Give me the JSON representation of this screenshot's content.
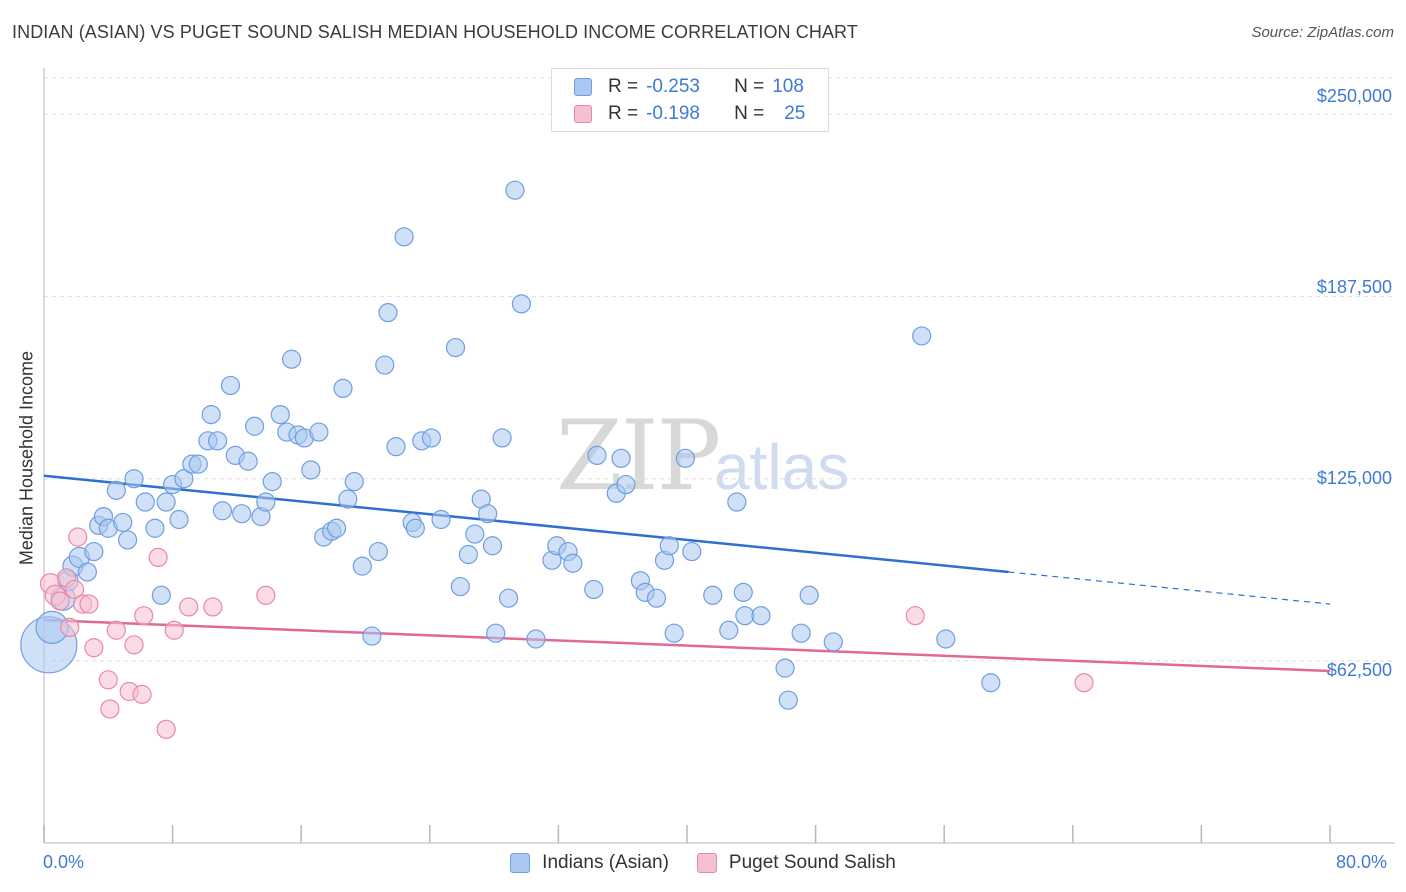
{
  "header": {
    "title": "INDIAN (ASIAN) VS PUGET SOUND SALISH MEDIAN HOUSEHOLD INCOME CORRELATION CHART",
    "source": "Source: ZipAtlas.com"
  },
  "watermark": {
    "zip": "ZIP",
    "atlas": "atlas"
  },
  "legend": {
    "rows": [
      {
        "r_label": "R =",
        "r_value": "-0.253",
        "n_label": "N =",
        "n_value": "108",
        "color": "#aac8f0",
        "border": "#6f9fe0"
      },
      {
        "r_label": "R =",
        "r_value": "-0.198",
        "n_label": "N =",
        "n_value": "25",
        "color": "#f7c0d2",
        "border": "#e889a8"
      }
    ]
  },
  "bottom_legend": {
    "items": [
      {
        "label": "Indians (Asian)",
        "color": "#aac8f0",
        "border": "#6f9fe0"
      },
      {
        "label": "Puget Sound Salish",
        "color": "#f7c0d2",
        "border": "#e889a8"
      }
    ]
  },
  "chart_data": {
    "type": "scatter",
    "title": "INDIAN (ASIAN) VS PUGET SOUND SALISH MEDIAN HOUSEHOLD INCOME CORRELATION CHART",
    "xlabel": "",
    "ylabel": "Median Household Income",
    "xlim": [
      0,
      80
    ],
    "ylim": [
      0,
      262500
    ],
    "x_tick_labels": [
      "0.0%",
      "80.0%"
    ],
    "y_ticks": [
      62500,
      125000,
      187500,
      250000
    ],
    "y_tick_labels": [
      "$62,500",
      "$125,000",
      "$187,500",
      "$250,000"
    ],
    "grid": "horizontal dashed",
    "legend_position": "top-center",
    "series": [
      {
        "name": "Indians (Asian)",
        "color": "#aac8f0",
        "stroke": "#6f9fe0",
        "trend": {
          "x_start": 0,
          "y_start": 126000,
          "x_solid_end": 60,
          "y_solid_end": 93000,
          "x_end": 80,
          "y_end": 82000
        },
        "points": [
          [
            0.3,
            68000,
            28
          ],
          [
            0.5,
            74000,
            16
          ],
          [
            1.2,
            84000,
            12
          ],
          [
            1.5,
            90000,
            10
          ],
          [
            1.8,
            95000,
            10
          ],
          [
            2.2,
            98000,
            10
          ],
          [
            2.7,
            93000,
            9
          ],
          [
            3.1,
            100000,
            9
          ],
          [
            3.4,
            109000,
            9
          ],
          [
            3.7,
            112000,
            9
          ],
          [
            4.0,
            108000,
            9
          ],
          [
            4.5,
            121000,
            9
          ],
          [
            4.9,
            110000,
            9
          ],
          [
            5.2,
            104000,
            9
          ],
          [
            5.6,
            125000,
            9
          ],
          [
            6.3,
            117000,
            9
          ],
          [
            6.9,
            108000,
            9
          ],
          [
            7.3,
            85000,
            9
          ],
          [
            7.6,
            117000,
            9
          ],
          [
            8.0,
            123000,
            9
          ],
          [
            8.4,
            111000,
            9
          ],
          [
            8.7,
            125000,
            9
          ],
          [
            9.2,
            130000,
            9
          ],
          [
            9.6,
            130000,
            9
          ],
          [
            10.2,
            138000,
            9
          ],
          [
            10.4,
            147000,
            9
          ],
          [
            10.8,
            138000,
            9
          ],
          [
            11.1,
            114000,
            9
          ],
          [
            11.6,
            157000,
            9
          ],
          [
            11.9,
            133000,
            9
          ],
          [
            12.3,
            113000,
            9
          ],
          [
            12.7,
            131000,
            9
          ],
          [
            13.1,
            143000,
            9
          ],
          [
            13.5,
            112000,
            9
          ],
          [
            13.8,
            117000,
            9
          ],
          [
            14.2,
            124000,
            9
          ],
          [
            14.7,
            147000,
            9
          ],
          [
            15.1,
            141000,
            9
          ],
          [
            15.4,
            166000,
            9
          ],
          [
            15.8,
            140000,
            9
          ],
          [
            16.2,
            139000,
            9
          ],
          [
            16.6,
            128000,
            9
          ],
          [
            17.1,
            141000,
            9
          ],
          [
            17.4,
            105000,
            9
          ],
          [
            17.9,
            107000,
            9
          ],
          [
            18.2,
            108000,
            9
          ],
          [
            18.6,
            156000,
            9
          ],
          [
            18.9,
            118000,
            9
          ],
          [
            19.3,
            124000,
            9
          ],
          [
            19.8,
            95000,
            9
          ],
          [
            20.4,
            71000,
            9
          ],
          [
            20.8,
            100000,
            9
          ],
          [
            21.2,
            164000,
            9
          ],
          [
            21.4,
            182000,
            9
          ],
          [
            21.9,
            136000,
            9
          ],
          [
            22.4,
            208000,
            9
          ],
          [
            22.9,
            110000,
            9
          ],
          [
            23.1,
            108000,
            9
          ],
          [
            23.5,
            138000,
            9
          ],
          [
            24.1,
            139000,
            9
          ],
          [
            24.7,
            111000,
            9
          ],
          [
            25.6,
            170000,
            9
          ],
          [
            25.9,
            88000,
            9
          ],
          [
            26.4,
            99000,
            9
          ],
          [
            26.8,
            106000,
            9
          ],
          [
            27.2,
            118000,
            9
          ],
          [
            27.6,
            113000,
            9
          ],
          [
            27.9,
            102000,
            9
          ],
          [
            28.1,
            72000,
            9
          ],
          [
            28.5,
            139000,
            9
          ],
          [
            28.9,
            84000,
            9
          ],
          [
            29.3,
            224000,
            9
          ],
          [
            29.7,
            185000,
            9
          ],
          [
            30.6,
            70000,
            9
          ],
          [
            31.6,
            97000,
            9
          ],
          [
            31.9,
            102000,
            9
          ],
          [
            32.6,
            100000,
            9
          ],
          [
            32.9,
            96000,
            9
          ],
          [
            34.2,
            87000,
            9
          ],
          [
            34.4,
            133000,
            9
          ],
          [
            35.6,
            120000,
            9
          ],
          [
            35.9,
            132000,
            9
          ],
          [
            36.2,
            123000,
            9
          ],
          [
            37.1,
            90000,
            9
          ],
          [
            37.4,
            86000,
            9
          ],
          [
            38.1,
            84000,
            9
          ],
          [
            38.6,
            97000,
            9
          ],
          [
            38.9,
            102000,
            9
          ],
          [
            39.2,
            72000,
            9
          ],
          [
            39.9,
            132000,
            9
          ],
          [
            40.3,
            100000,
            9
          ],
          [
            41.6,
            85000,
            9
          ],
          [
            42.6,
            73000,
            9
          ],
          [
            43.1,
            117000,
            9
          ],
          [
            43.5,
            86000,
            9
          ],
          [
            43.6,
            78000,
            9
          ],
          [
            44.6,
            78000,
            9
          ],
          [
            46.1,
            60000,
            9
          ],
          [
            46.3,
            49000,
            9
          ],
          [
            47.1,
            72000,
            9
          ],
          [
            47.6,
            85000,
            9
          ],
          [
            49.1,
            69000,
            9
          ],
          [
            54.6,
            174000,
            9
          ],
          [
            56.1,
            70000,
            9
          ],
          [
            58.9,
            55000,
            9
          ]
        ]
      },
      {
        "name": "Puget Sound Salish",
        "color": "#f7c0d2",
        "stroke": "#e889a8",
        "trend": {
          "x_start": 0,
          "y_start": 76500,
          "x_end": 80,
          "y_end": 59000
        },
        "points": [
          [
            0.4,
            89000,
            10
          ],
          [
            0.7,
            85000,
            10
          ],
          [
            1.0,
            83000,
            9
          ],
          [
            1.4,
            91000,
            9
          ],
          [
            1.6,
            74000,
            9
          ],
          [
            1.9,
            87000,
            9
          ],
          [
            2.1,
            105000,
            9
          ],
          [
            2.4,
            82000,
            9
          ],
          [
            2.8,
            82000,
            9
          ],
          [
            3.1,
            67000,
            9
          ],
          [
            4.0,
            56000,
            9
          ],
          [
            4.1,
            46000,
            9
          ],
          [
            4.5,
            73000,
            9
          ],
          [
            5.3,
            52000,
            9
          ],
          [
            5.6,
            68000,
            9
          ],
          [
            6.1,
            51000,
            9
          ],
          [
            6.2,
            78000,
            9
          ],
          [
            7.1,
            98000,
            9
          ],
          [
            7.6,
            39000,
            9
          ],
          [
            8.1,
            73000,
            9
          ],
          [
            9.0,
            81000,
            9
          ],
          [
            10.5,
            81000,
            9
          ],
          [
            13.8,
            85000,
            9
          ],
          [
            54.2,
            78000,
            9
          ],
          [
            64.7,
            55000,
            9
          ]
        ]
      }
    ]
  }
}
